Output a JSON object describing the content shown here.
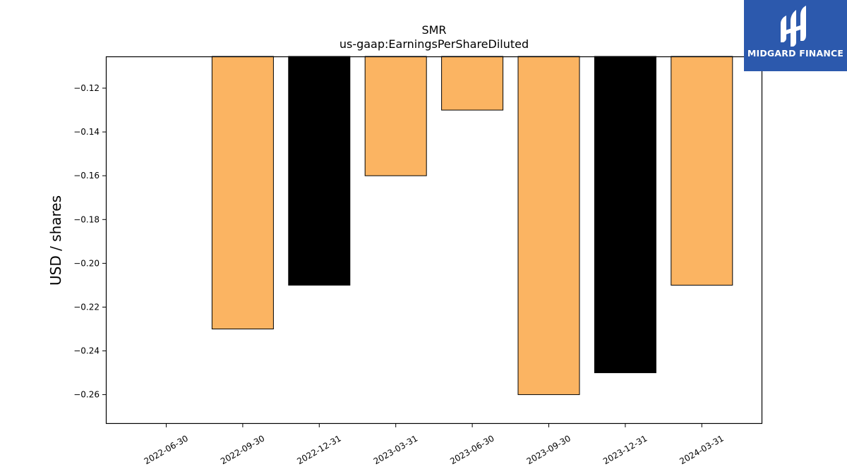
{
  "chart_data": {
    "type": "bar",
    "title": "SMR",
    "subtitle": "us-gaap:EarningsPerShareDiluted",
    "xlabel": "",
    "ylabel": "USD / shares",
    "categories": [
      "2022-06-30",
      "2022-09-30",
      "2022-12-31",
      "2023-03-31",
      "2023-06-30",
      "2023-09-30",
      "2023-12-31",
      "2024-03-31"
    ],
    "values": [
      null,
      -0.23,
      -0.21,
      -0.16,
      -0.13,
      -0.26,
      -0.25,
      -0.21
    ],
    "bar_colors": [
      "#fbb462",
      "#fbb462",
      "#000000",
      "#fbb462",
      "#fbb462",
      "#fbb462",
      "#000000",
      "#fbb462"
    ],
    "ylim": [
      -0.273,
      -0.1055
    ],
    "yticks": [
      -0.12,
      -0.14,
      -0.16,
      -0.18,
      -0.2,
      -0.22,
      -0.24,
      -0.26
    ],
    "ytick_labels": [
      "−0.12",
      "−0.14",
      "−0.16",
      "−0.18",
      "−0.20",
      "−0.22",
      "−0.24",
      "−0.26"
    ],
    "grid": false,
    "bar_edge_color": "#000000"
  },
  "logo": {
    "text": "MIDGARD FINANCE",
    "background": "#2c59ad"
  }
}
